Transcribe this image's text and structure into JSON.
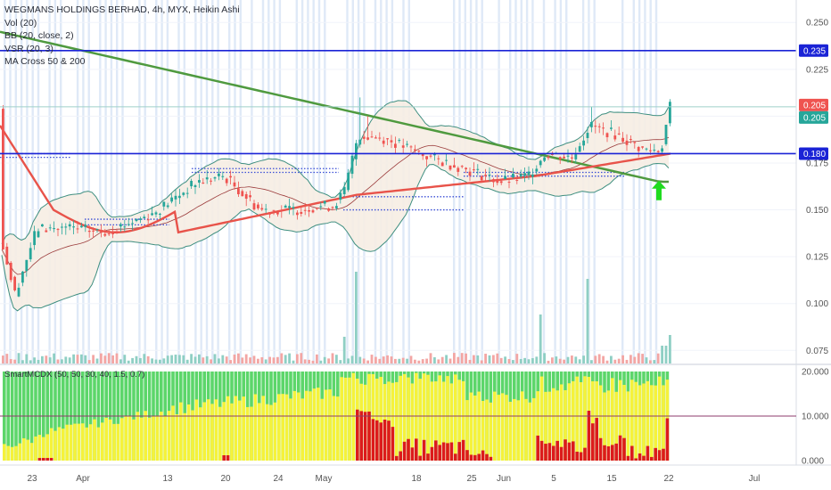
{
  "header": {
    "title": "WEGMANS HOLDINGS BERHAD, 4h, MYX, Heikin Ashi",
    "indicators": [
      "Vol (20)",
      "BB (20, close, 2)",
      "VSR (20, 3)",
      "MA Cross 50 & 200"
    ]
  },
  "oscillator": {
    "label": "SmartMCDX (50, 50, 30, 40, 1.5, 0.7)"
  },
  "colors": {
    "background": "#ffffff",
    "bull": "#26a69a",
    "bear": "#ef5350",
    "ma50": "#e8534a",
    "ma200": "#4f9a3f",
    "hline": "#1a23d6",
    "bb": "#3f8f80",
    "vsr_stripe": "#dfe9f7",
    "osc_green": "#5cd66a",
    "osc_yellow": "#f5f23b",
    "osc_red": "#dc1b1b",
    "arrow": "#1fdb1f"
  },
  "chart_data": {
    "type": "candlestick",
    "price_axis": {
      "ticks": [
        "0.250",
        "0.225",
        "0.205",
        "0.180",
        "0.175",
        "0.150",
        "0.125",
        "0.100",
        "0.075"
      ],
      "range": [
        0.068,
        0.262
      ]
    },
    "time_axis": {
      "ticks": [
        "23",
        "Apr",
        "13",
        "20",
        "24",
        "May",
        "18",
        "25",
        "Jun",
        "5",
        "15",
        "22",
        "Jul"
      ]
    },
    "horizontal_lines": [
      {
        "value": 0.235,
        "label": "0.235",
        "color": "#1a23d6"
      },
      {
        "value": 0.18,
        "label": "0.180",
        "color": "#1a23d6"
      }
    ],
    "price_labels": [
      {
        "value": 0.205,
        "label": "0.205",
        "color": "#ef5350"
      },
      {
        "value": 0.205,
        "label": "0.205",
        "color": "#26a69a"
      }
    ],
    "oscillator_axis": {
      "ticks": [
        "20.000",
        "10.000",
        "0.000"
      ],
      "range": [
        0,
        20
      ],
      "level": 10
    },
    "ma_cross_marker": "up-arrow",
    "candles": [
      {
        "period": "March 16–20",
        "open": 0.135,
        "close": 0.105,
        "high": 0.138,
        "low": 0.095,
        "trend": "down"
      },
      {
        "period": "March 23–31",
        "open": 0.11,
        "close": 0.14,
        "high": 0.145,
        "low": 0.108,
        "trend": "up"
      },
      {
        "period": "April 1–10",
        "open": 0.14,
        "close": 0.138,
        "high": 0.145,
        "low": 0.13,
        "trend": "sideways"
      },
      {
        "period": "April 13–17",
        "open": 0.14,
        "close": 0.165,
        "high": 0.17,
        "low": 0.138,
        "trend": "up"
      },
      {
        "period": "April 20–23",
        "open": 0.168,
        "close": 0.15,
        "high": 0.172,
        "low": 0.145,
        "trend": "down"
      },
      {
        "period": "April 24–30",
        "open": 0.148,
        "close": 0.152,
        "high": 0.155,
        "low": 0.142,
        "trend": "sideways"
      },
      {
        "period": "May 4–8",
        "open": 0.16,
        "close": 0.195,
        "high": 0.21,
        "low": 0.155,
        "trend": "up"
      },
      {
        "period": "May 11–22",
        "open": 0.19,
        "close": 0.175,
        "high": 0.195,
        "low": 0.17,
        "trend": "down"
      },
      {
        "period": "May 25–29",
        "open": 0.172,
        "close": 0.168,
        "high": 0.178,
        "low": 0.165,
        "trend": "down"
      },
      {
        "period": "June 1–5",
        "open": 0.165,
        "close": 0.18,
        "high": 0.195,
        "low": 0.162,
        "trend": "up"
      },
      {
        "period": "June 8–12",
        "open": 0.185,
        "close": 0.195,
        "high": 0.225,
        "low": 0.175,
        "trend": "up"
      },
      {
        "period": "June 15–19",
        "open": 0.19,
        "close": 0.18,
        "high": 0.198,
        "low": 0.17,
        "trend": "down"
      },
      {
        "period": "June 22",
        "open": 0.185,
        "close": 0.205,
        "high": 0.207,
        "low": 0.18,
        "trend": "up"
      }
    ]
  }
}
